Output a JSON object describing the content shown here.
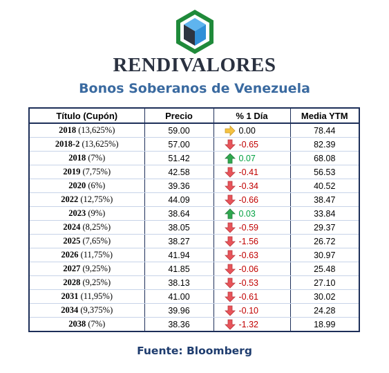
{
  "brand": {
    "name": "RENDIVALORES",
    "logo_icon": "cube-hexagon-logo",
    "logo_colors": {
      "frame": "#1f8a3a",
      "cube_blue": "#2f8fd8",
      "cube_dark": "#2d3440"
    }
  },
  "subtitle": "Bonos Soberanos de Venezuela",
  "table": {
    "headers": {
      "titulo": "Título (Cupón)",
      "precio": "Precio",
      "pct": "% 1 Día",
      "ytm": "Media YTM"
    },
    "rows": [
      {
        "name": "2018",
        "coupon": " (13,625%)",
        "precio": "59.00",
        "pct": "0.00",
        "trend": "flat",
        "ytm": "78.44"
      },
      {
        "name": "2018-2",
        "coupon": " (13,625%)",
        "precio": "57.00",
        "pct": "-0.65",
        "trend": "down",
        "ytm": "82.39"
      },
      {
        "name": "2018",
        "coupon": " (7%)",
        "precio": "51.42",
        "pct": "0.07",
        "trend": "up",
        "ytm": "68.08"
      },
      {
        "name": "2019",
        "coupon": " (7,75%)",
        "precio": "42.58",
        "pct": "-0.41",
        "trend": "down",
        "ytm": "56.53"
      },
      {
        "name": "2020",
        "coupon": " (6%)",
        "precio": "39.36",
        "pct": "-0.34",
        "trend": "down",
        "ytm": "40.52"
      },
      {
        "name": "2022",
        "coupon": " (12,75%)",
        "precio": "44.09",
        "pct": "-0.66",
        "trend": "down",
        "ytm": "38.47"
      },
      {
        "name": "2023",
        "coupon": " (9%)",
        "precio": "38.64",
        "pct": "0.03",
        "trend": "up",
        "ytm": "33.84"
      },
      {
        "name": "2024",
        "coupon": " (8,25%)",
        "precio": "38.05",
        "pct": "-0.59",
        "trend": "down",
        "ytm": "29.37"
      },
      {
        "name": "2025",
        "coupon": " (7,65%)",
        "precio": "38.27",
        "pct": "-1.56",
        "trend": "down",
        "ytm": "26.72"
      },
      {
        "name": "2026",
        "coupon": " (11,75%)",
        "precio": "41.94",
        "pct": "-0.63",
        "trend": "down",
        "ytm": "30.97"
      },
      {
        "name": "2027",
        "coupon": " (9,25%)",
        "precio": "41.85",
        "pct": "-0.06",
        "trend": "down",
        "ytm": "25.48"
      },
      {
        "name": "2028",
        "coupon": " (9,25%)",
        "precio": "38.13",
        "pct": "-0.53",
        "trend": "down",
        "ytm": "27.10"
      },
      {
        "name": "2031",
        "coupon": " (11,95%)",
        "precio": "41.00",
        "pct": "-0.61",
        "trend": "down",
        "ytm": "30.02"
      },
      {
        "name": "2034",
        "coupon": " (9,375%)",
        "precio": "39.96",
        "pct": "-0.10",
        "trend": "down",
        "ytm": "24.28"
      },
      {
        "name": "2038",
        "coupon": " (7%)",
        "precio": "38.36",
        "pct": "-1.32",
        "trend": "down",
        "ytm": "18.99"
      }
    ],
    "trend_icons": {
      "up": "arrow-up-icon",
      "down": "arrow-down-icon",
      "flat": "arrow-right-icon"
    },
    "trend_colors": {
      "up": "#2fa84f",
      "down": "#e8545a",
      "flat": "#f5c242"
    }
  },
  "source": "Fuente: Bloomberg"
}
